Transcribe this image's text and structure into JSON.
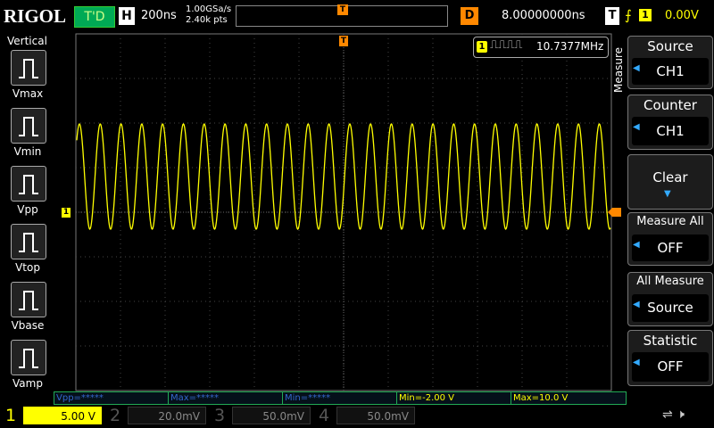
{
  "header": {
    "brand": "RIGOL",
    "status": "T'D",
    "timebase_label": "H",
    "timebase": "200ns",
    "sample_rate": "1.00GSa/s",
    "memory_depth": "2.40k pts",
    "trigger_position_marker": "T",
    "delay_label": "D",
    "delay": "8.00000000ns",
    "trigger_label": "T",
    "trigger_channel": "1",
    "trigger_level": "0.00V"
  },
  "left_panel": {
    "title": "Vertical",
    "items": [
      "Vmax",
      "Vmin",
      "Vpp",
      "Vtop",
      "Vbase",
      "Vamp"
    ]
  },
  "display": {
    "trigger_marker": "T",
    "channel_marker": "1",
    "counter": {
      "channel": "1",
      "frequency": "10.7377MHz"
    }
  },
  "measure_menu": {
    "title": "Measure",
    "items": [
      {
        "label": "Source",
        "value": "CH1"
      },
      {
        "label": "Counter",
        "value": "CH1"
      },
      {
        "label": "Clear"
      },
      {
        "label": "Measure All",
        "value": "OFF"
      },
      {
        "label": "All Measure",
        "value": "Source"
      },
      {
        "label": "Statistic",
        "value": "OFF"
      }
    ]
  },
  "measurements": [
    "Vpp=*****",
    "Max=*****",
    "Min=*****",
    "Min=-2.00 V",
    "Max=10.0 V"
  ],
  "channels": [
    {
      "number": "1",
      "scale": "5.00 V"
    },
    {
      "number": "2",
      "scale": "20.0mV"
    },
    {
      "number": "3",
      "scale": "50.0mV"
    },
    {
      "number": "4",
      "scale": "50.0mV"
    }
  ]
}
